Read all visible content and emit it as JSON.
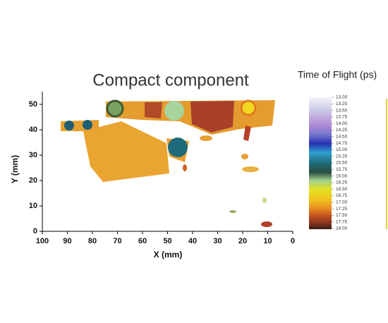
{
  "chart_data": {
    "type": "heatmap",
    "title": "Compact component",
    "x_label": "X (mm)",
    "y_label": "Y (mm)",
    "xlim": [
      100,
      0
    ],
    "xticks": [
      100,
      90,
      80,
      70,
      60,
      50,
      40,
      30,
      20,
      10,
      0
    ],
    "ylim": [
      0,
      55
    ],
    "yticks": [
      0,
      10,
      20,
      30,
      40,
      50
    ],
    "colorbar": {
      "title": "Time of Flight (ps)",
      "lim": [
        13,
        18
      ],
      "ticks": [
        {
          "value": 13,
          "label": "13.00"
        },
        {
          "value": 13.25,
          "label": "13.25"
        },
        {
          "value": 13.5,
          "label": "13.50"
        },
        {
          "value": 13.75,
          "label": "13.75"
        },
        {
          "value": 14,
          "label": "14.00"
        },
        {
          "value": 14.25,
          "label": "14.25"
        },
        {
          "value": 14.5,
          "label": "14.50"
        },
        {
          "value": 14.75,
          "label": "14.75"
        },
        {
          "value": 15,
          "label": "15.00"
        },
        {
          "value": 15.25,
          "label": "15.25"
        },
        {
          "value": 15.5,
          "label": "15.50"
        },
        {
          "value": 15.75,
          "label": "15.75"
        },
        {
          "value": 16,
          "label": "16.00"
        },
        {
          "value": 16.25,
          "label": "16.25"
        },
        {
          "value": 16.5,
          "label": "16.50"
        },
        {
          "value": 16.75,
          "label": "16.75"
        },
        {
          "value": 17,
          "label": "17.00"
        },
        {
          "value": 17.25,
          "label": "17.25"
        },
        {
          "value": 17.5,
          "label": "17.50"
        },
        {
          "value": 17.75,
          "label": "17.75"
        },
        {
          "value": 18,
          "label": "18.00"
        }
      ]
    }
  }
}
